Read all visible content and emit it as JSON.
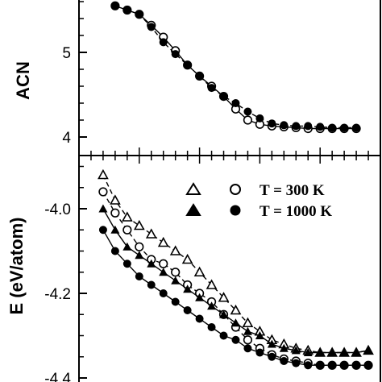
{
  "chart_data": [
    {
      "panel": "top",
      "type": "scatter",
      "ylabel": "ACN",
      "xlabel": "",
      "ylim": [
        3.8,
        6.0
      ],
      "yticks": [
        4,
        5
      ],
      "ytick_labels": [
        "4",
        "5"
      ],
      "grid": false,
      "series": [
        {
          "marker": "open-circle",
          "line": "solid",
          "x": [
            56,
            58,
            60,
            62,
            64,
            66,
            68,
            70,
            72,
            74,
            76,
            78,
            80,
            82,
            84,
            86,
            88,
            90,
            92,
            94,
            96
          ],
          "y": [
            5.55,
            5.5,
            5.45,
            5.32,
            5.18,
            5.02,
            4.85,
            4.72,
            4.6,
            4.48,
            4.33,
            4.2,
            4.15,
            4.13,
            4.12,
            4.11,
            4.1,
            4.1,
            4.1,
            4.1,
            4.1
          ]
        },
        {
          "marker": "filled-circle",
          "line": "dashed",
          "x": [
            56,
            58,
            60,
            62,
            64,
            66,
            68,
            70,
            72,
            74,
            76,
            78,
            80,
            82,
            84,
            86,
            88,
            90,
            92,
            94,
            96
          ],
          "y": [
            5.55,
            5.5,
            5.45,
            5.3,
            5.12,
            4.98,
            4.85,
            4.72,
            4.58,
            4.48,
            4.4,
            4.3,
            4.22,
            4.16,
            4.14,
            4.13,
            4.13,
            4.12,
            4.11,
            4.11,
            4.11
          ]
        }
      ]
    },
    {
      "panel": "bottom",
      "type": "scatter",
      "ylabel": "E (eV/atom)",
      "xlabel": "",
      "ylim": [
        -4.4,
        -3.88
      ],
      "yticks": [
        -4.0,
        -4.2,
        -4.4
      ],
      "ytick_labels": [
        "-4.0",
        "-4.2",
        "-4.4"
      ],
      "grid": false,
      "legend": {
        "position": "top-right",
        "entries": [
          {
            "markers": [
              "open-triangle",
              "open-circle"
            ],
            "label": "T = 300 K"
          },
          {
            "markers": [
              "filled-triangle",
              "filled-circle"
            ],
            "label": "T = 1000 K"
          }
        ]
      },
      "series": [
        {
          "marker": "open-triangle",
          "line": "dashed",
          "x": [
            54,
            56,
            58,
            60,
            62,
            64,
            66,
            68,
            70,
            72,
            74,
            76,
            78,
            80,
            82,
            84,
            86,
            88,
            90,
            92,
            94,
            96,
            98
          ],
          "y": [
            -3.92,
            -3.98,
            -4.02,
            -4.04,
            -4.06,
            -4.08,
            -4.1,
            -4.12,
            -4.15,
            -4.18,
            -4.21,
            -4.24,
            -4.27,
            -4.29,
            -4.31,
            -4.32,
            -4.33,
            -4.335,
            -4.34,
            -4.34,
            -4.34,
            -4.34,
            -4.335
          ]
        },
        {
          "marker": "open-circle",
          "line": "dashed",
          "x": [
            54,
            56,
            58,
            60,
            62,
            64,
            66,
            68,
            70,
            72,
            74,
            76,
            78,
            80,
            82,
            84,
            86,
            88,
            90,
            92,
            94,
            96,
            98
          ],
          "y": [
            -3.96,
            -4.01,
            -4.05,
            -4.09,
            -4.12,
            -4.13,
            -4.15,
            -4.18,
            -4.2,
            -4.22,
            -4.25,
            -4.28,
            -4.31,
            -4.33,
            -4.345,
            -4.355,
            -4.36,
            -4.365,
            -4.37,
            -4.37,
            -4.37,
            -4.37,
            -4.37
          ]
        },
        {
          "marker": "filled-triangle",
          "line": "solid",
          "x": [
            54,
            56,
            58,
            60,
            62,
            64,
            66,
            68,
            70,
            72,
            74,
            76,
            78,
            80,
            82,
            84,
            86,
            88,
            90,
            92,
            94,
            96,
            98
          ],
          "y": [
            -4.0,
            -4.05,
            -4.09,
            -4.11,
            -4.13,
            -4.15,
            -4.17,
            -4.19,
            -4.21,
            -4.23,
            -4.25,
            -4.27,
            -4.29,
            -4.3,
            -4.32,
            -4.33,
            -4.335,
            -4.34,
            -4.34,
            -4.34,
            -4.34,
            -4.34,
            -4.335
          ]
        },
        {
          "marker": "filled-circle",
          "line": "solid",
          "x": [
            54,
            56,
            58,
            60,
            62,
            64,
            66,
            68,
            70,
            72,
            74,
            76,
            78,
            80,
            82,
            84,
            86,
            88,
            90,
            92,
            94,
            96,
            98
          ],
          "y": [
            -4.05,
            -4.1,
            -4.13,
            -4.16,
            -4.18,
            -4.2,
            -4.22,
            -4.24,
            -4.26,
            -4.28,
            -4.3,
            -4.31,
            -4.33,
            -4.34,
            -4.35,
            -4.36,
            -4.365,
            -4.37,
            -4.37,
            -4.37,
            -4.37,
            -4.37,
            -4.37
          ]
        }
      ]
    }
  ]
}
